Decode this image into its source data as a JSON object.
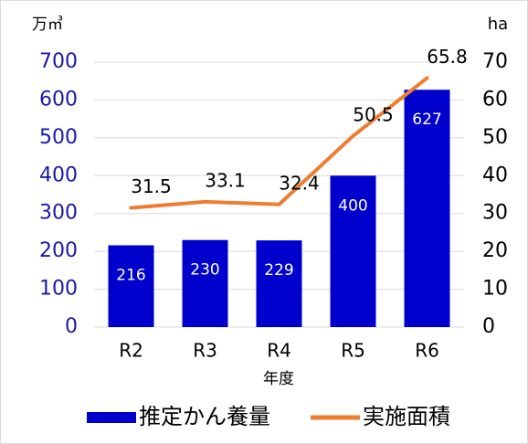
{
  "chart_data": {
    "type": "bar",
    "y_unit": "万㎥",
    "y2_unit": "ha",
    "xlabel": "年度",
    "categories": [
      "R2",
      "R3",
      "R4",
      "R5",
      "R6"
    ],
    "series": [
      {
        "name": "推定かん養量",
        "type": "bar",
        "color": "#0000cc",
        "axis": "y",
        "values": [
          216,
          230,
          229,
          400,
          627
        ]
      },
      {
        "name": "実施面積",
        "type": "line",
        "color": "#ed7d31",
        "axis": "y2",
        "values": [
          31.5,
          33.1,
          32.4,
          50.5,
          65.8
        ]
      }
    ],
    "ylim": [
      0,
      700
    ],
    "yticks": [
      0,
      100,
      200,
      300,
      400,
      500,
      600,
      700
    ],
    "y2lim": [
      0,
      70
    ],
    "y2ticks": [
      0,
      10,
      20,
      30,
      40,
      50,
      60,
      70
    ],
    "grid": true,
    "legend": "bottom"
  }
}
